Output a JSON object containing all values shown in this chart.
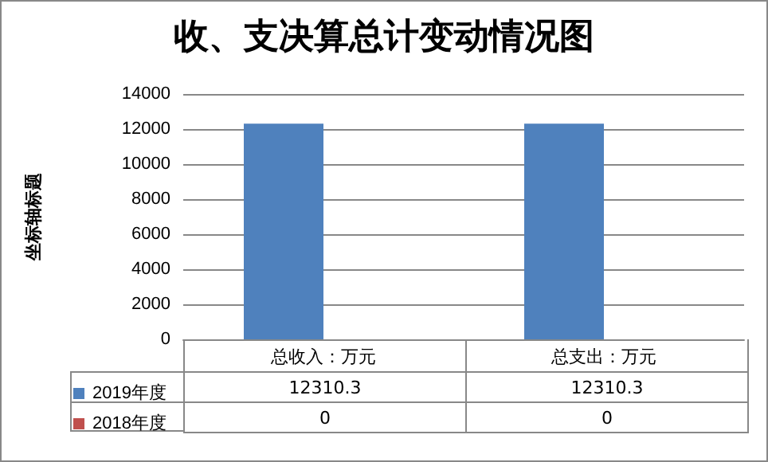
{
  "chart_data": {
    "type": "bar",
    "title": "收、支决算总计变动情况图",
    "ylabel": "坐标轴标题",
    "categories": [
      "总收入：万元",
      "总支出：万元"
    ],
    "series": [
      {
        "name": "2019年度",
        "color": "#4f81bd",
        "values": [
          12310.3,
          12310.3
        ]
      },
      {
        "name": "2018年度",
        "color": "#c0504d",
        "values": [
          0,
          0
        ]
      }
    ],
    "ylim": [
      0,
      14000
    ],
    "yticks": [
      0,
      2000,
      4000,
      6000,
      8000,
      10000,
      12000,
      14000
    ],
    "grid": "y",
    "legend": "bottom",
    "data_labels": true
  }
}
